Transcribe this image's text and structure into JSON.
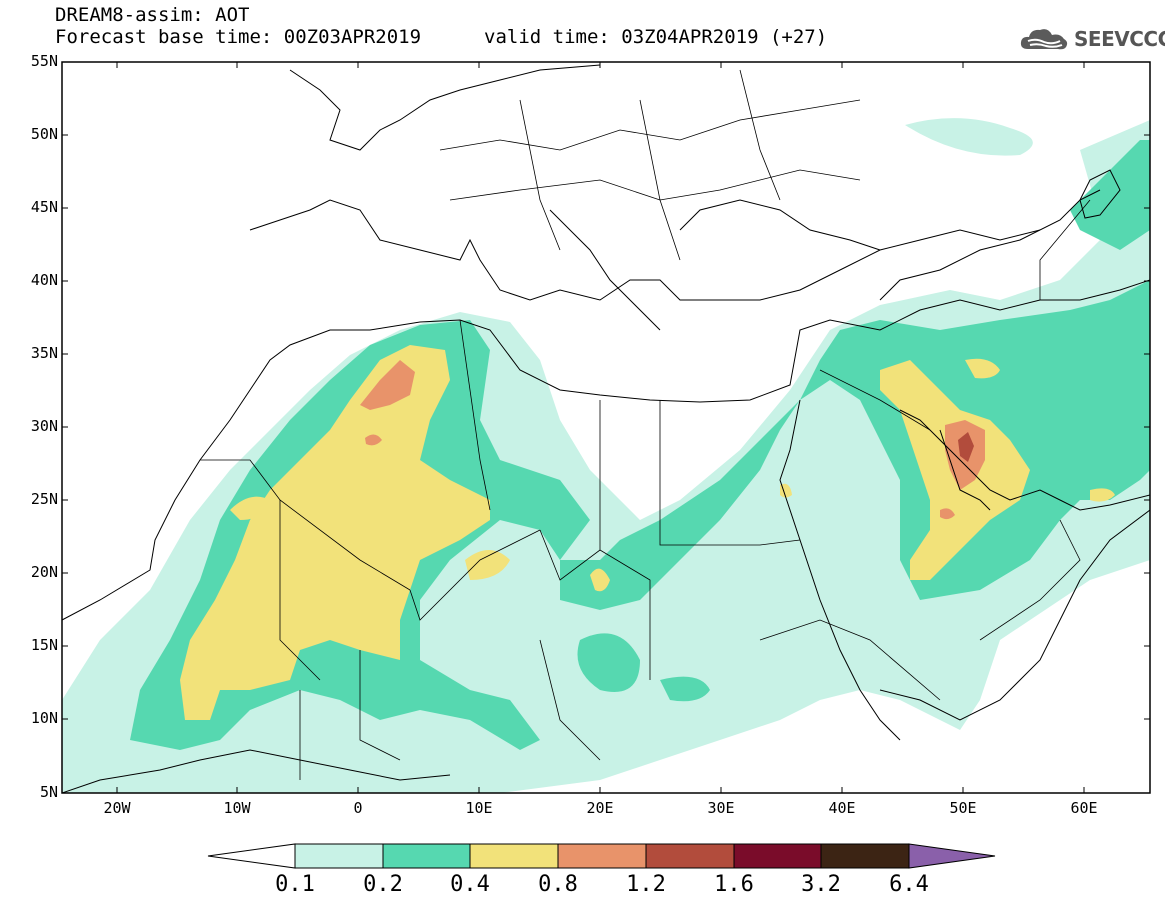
{
  "title": {
    "line1": "DREAM8-assim: AOT",
    "base": "Forecast base time: 00Z03APR2019",
    "valid": "valid time: 03Z04APR2019 (+27)"
  },
  "logo": {
    "text": "SEEVCCC",
    "icon": "cloud-icon"
  },
  "map": {
    "lat_labels": [
      "55N",
      "50N",
      "45N",
      "40N",
      "35N",
      "30N",
      "25N",
      "20N",
      "15N",
      "10N",
      "5N"
    ],
    "lon_labels": [
      "20W",
      "10W",
      "0",
      "10E",
      "20E",
      "30E",
      "40E",
      "50E",
      "60E"
    ]
  },
  "colorbar": {
    "labels": [
      "0.1",
      "0.2",
      "0.4",
      "0.8",
      "1.2",
      "1.6",
      "3.2",
      "6.4"
    ],
    "colors": {
      "below": "#ffffff",
      "c1": "#c8f2e6",
      "c2": "#56d8b0",
      "c3": "#f2e27a",
      "c4": "#e8936a",
      "c5": "#b24c3c",
      "c6": "#7a0c2a",
      "c7": "#3c2414",
      "above": "#8a60aa"
    }
  }
}
